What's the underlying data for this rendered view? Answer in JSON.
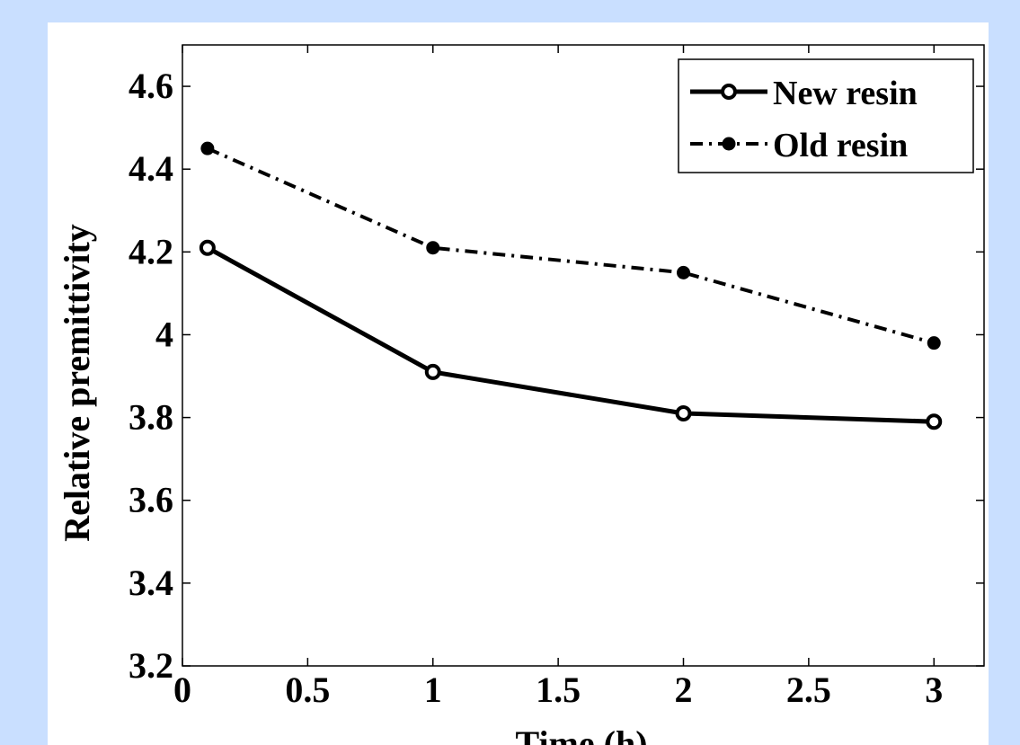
{
  "chart_data": {
    "type": "line",
    "title": "",
    "xlabel": "Time (h)",
    "ylabel": "Relative premittivity",
    "xlim": [
      0,
      3.2
    ],
    "ylim": [
      3.2,
      4.7
    ],
    "xticks": [
      0,
      0.5,
      1,
      1.5,
      2,
      2.5,
      3
    ],
    "xtick_labels": [
      "0",
      "0.5",
      "1",
      "1.5",
      "2",
      "2.5",
      "3"
    ],
    "yticks": [
      3.2,
      3.4,
      3.6,
      3.8,
      4.0,
      4.2,
      4.4,
      4.6
    ],
    "ytick_labels": [
      "3.2",
      "3.4",
      "3.6",
      "3.8",
      "4",
      "4.2",
      "4.4",
      "4.6"
    ],
    "grid": false,
    "legend_position": "top-right",
    "x": [
      0.1,
      1,
      2,
      3
    ],
    "series": [
      {
        "name": "New resin",
        "values": [
          4.21,
          3.91,
          3.81,
          3.79
        ],
        "line_style": "solid",
        "marker": "open-circle",
        "color": "#000000"
      },
      {
        "name": "Old resin",
        "values": [
          4.45,
          4.21,
          4.15,
          3.98
        ],
        "line_style": "dash-dot",
        "marker": "filled-circle",
        "color": "#000000"
      }
    ]
  }
}
